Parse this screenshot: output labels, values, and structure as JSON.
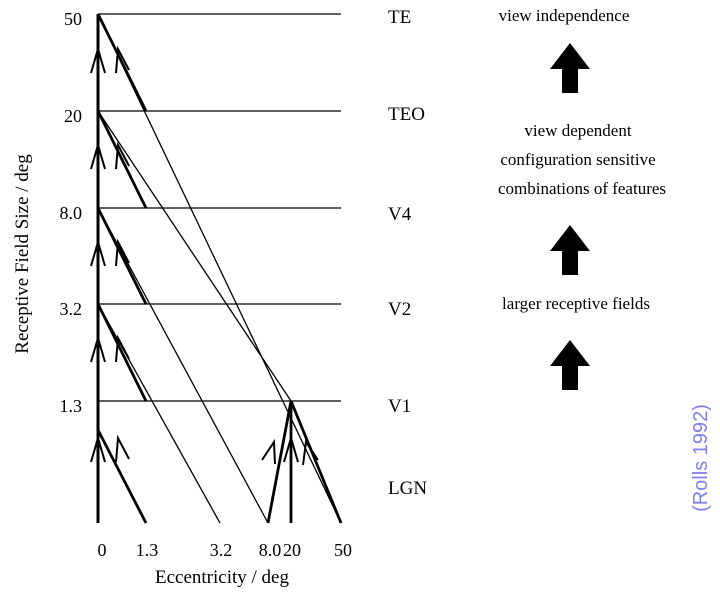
{
  "axes": {
    "y_title": "Receptive Field Size / deg",
    "x_title": "Eccentricity / deg",
    "y_ticks": [
      "50",
      "20",
      "8.0",
      "3.2",
      "1.3"
    ],
    "x_ticks": [
      "0",
      "1.3",
      "3.2",
      "8.0",
      "20",
      "50"
    ]
  },
  "areas": [
    "TE",
    "TEO",
    "V4",
    "V2",
    "V1",
    "LGN"
  ],
  "annotations": {
    "view_independence": "view independence",
    "view_dependent": "view dependent",
    "configuration_sensitive": "configuration sensitive",
    "combinations": "combinations of features",
    "larger_rf": "larger receptive fields"
  },
  "citation": "(Rolls 1992)",
  "colors": {
    "ink": "#000000",
    "citation": "#8080e8"
  }
}
